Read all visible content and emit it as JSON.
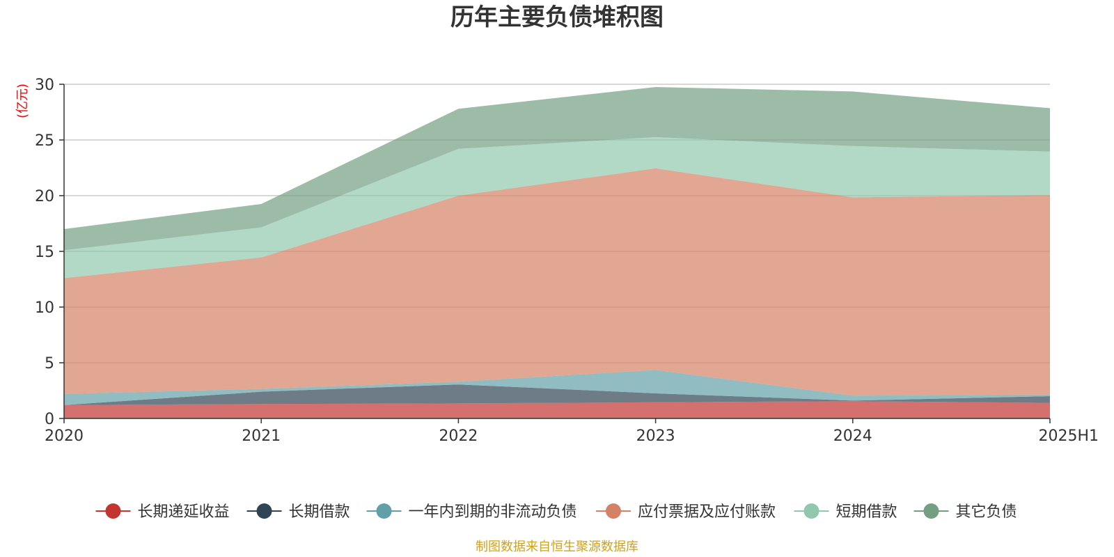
{
  "chart_data": {
    "type": "area",
    "stacked": true,
    "title": "历年主要负债堆积图",
    "ylabel": "(亿元)",
    "xlabel": "",
    "categories": [
      "2020",
      "2021",
      "2022",
      "2023",
      "2024",
      "2025H1"
    ],
    "ylim": [
      0,
      30
    ],
    "yticks": [
      0,
      5,
      10,
      15,
      20,
      25,
      30
    ],
    "grid": true,
    "legend_position": "bottom",
    "series": [
      {
        "name": "长期递延收益",
        "color": "#c23531",
        "fill_opacity": 0.7,
        "values": [
          1.2,
          1.3,
          1.35,
          1.45,
          1.55,
          1.4
        ]
      },
      {
        "name": "长期借款",
        "color": "#2f4554",
        "fill_opacity": 0.7,
        "values": [
          0.0,
          1.1,
          1.7,
          0.8,
          0.05,
          0.6
        ]
      },
      {
        "name": "一年内到期的非流动负债",
        "color": "#61a0a8",
        "fill_opacity": 0.7,
        "values": [
          1.0,
          0.25,
          0.25,
          2.1,
          0.45,
          0.15
        ]
      },
      {
        "name": "应付票据及应付账款",
        "color": "#d48265",
        "fill_opacity": 0.7,
        "values": [
          10.4,
          11.8,
          16.7,
          18.1,
          17.8,
          17.9
        ]
      },
      {
        "name": "短期借款",
        "color": "#91c7ae",
        "fill_opacity": 0.7,
        "values": [
          2.5,
          2.7,
          4.2,
          2.8,
          4.6,
          3.9
        ]
      },
      {
        "name": "其它负债",
        "color": "#749f83",
        "fill_opacity": 0.7,
        "values": [
          1.9,
          2.1,
          3.6,
          4.5,
          4.9,
          3.9
        ]
      }
    ]
  },
  "axis_color": "#333333",
  "grid_color": "#cccccc",
  "unit_color": "#ff0000",
  "source": {
    "text": "制图数据来自恒生聚源数据库",
    "color": "#d4a017"
  }
}
